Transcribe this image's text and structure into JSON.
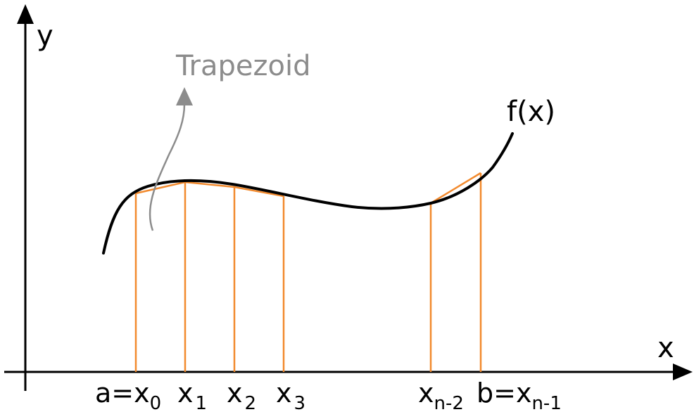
{
  "axes": {
    "y_label": "y",
    "x_label": "x"
  },
  "curve": {
    "label": "f(x)"
  },
  "annotation": {
    "label": "Trapezoid"
  },
  "nodes": [
    {
      "prefix": "a=x",
      "sub": "0"
    },
    {
      "prefix": "x",
      "sub": "1"
    },
    {
      "prefix": "x",
      "sub": "2"
    },
    {
      "prefix": "x",
      "sub": "3"
    },
    {
      "prefix": "x",
      "sub": "n-2"
    },
    {
      "prefix": "b=x",
      "sub": "n-1"
    }
  ],
  "colors": {
    "axis": "#000000",
    "curve": "#000000",
    "trapezoid": "#f28a2e",
    "annotation": "#8c8c8c"
  }
}
